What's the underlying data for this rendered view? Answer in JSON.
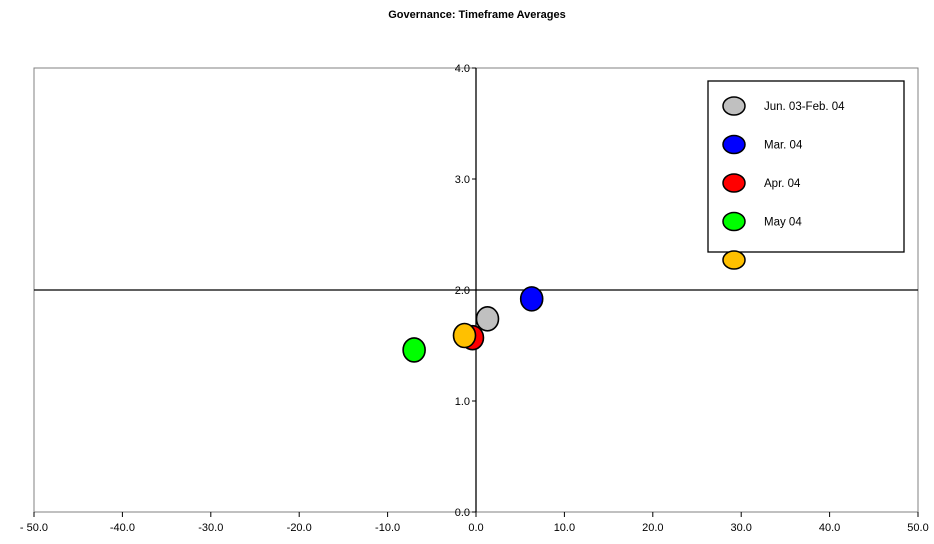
{
  "chart_data": {
    "type": "scatter",
    "title": "Governance: Timeframe Averages",
    "xlabel": "",
    "ylabel": "",
    "xlim": [
      -50,
      50
    ],
    "ylim": [
      0,
      4
    ],
    "x_ticks": [
      "- 50.0",
      "-40.0",
      "-30.0",
      "-20.0",
      "-10.0",
      "0.0",
      "10.0",
      "20.0",
      "30.0",
      "40.0",
      "50.0"
    ],
    "x_tick_values": [
      -50,
      -40,
      -30,
      -20,
      -10,
      0,
      10,
      20,
      30,
      40,
      50
    ],
    "y_ticks": [
      "0.0",
      "1.0",
      "2.0",
      "3.0",
      "4.0"
    ],
    "y_tick_values": [
      0,
      1,
      2,
      3,
      4
    ],
    "reference_lines": {
      "x": 0,
      "y": 2.0
    },
    "grid": false,
    "legend_position": "top-right",
    "series": [
      {
        "name": "Jun. 03-Feb. 04",
        "color": "#c0c0c0",
        "points": [
          {
            "x": 1.3,
            "y": 1.74
          }
        ]
      },
      {
        "name": "Mar. 04",
        "color": "#0000ff",
        "points": [
          {
            "x": 6.3,
            "y": 1.92
          }
        ]
      },
      {
        "name": "Apr. 04",
        "color": "#ff0000",
        "points": [
          {
            "x": -0.4,
            "y": 1.57
          }
        ]
      },
      {
        "name": "May 04",
        "color": "#00ff00",
        "points": [
          {
            "x": -7.0,
            "y": 1.46
          }
        ]
      },
      {
        "name": "",
        "color": "#ffc000",
        "points": [
          {
            "x": -1.3,
            "y": 1.59
          }
        ]
      }
    ],
    "legend_entries": [
      {
        "label": "Jun. 03-Feb. 04",
        "color": "#c0c0c0"
      },
      {
        "label": "Mar. 04",
        "color": "#0000ff"
      },
      {
        "label": "Apr. 04",
        "color": "#ff0000"
      },
      {
        "label": "May 04",
        "color": "#00ff00"
      },
      {
        "label": "",
        "color": "#ffc000"
      }
    ]
  }
}
